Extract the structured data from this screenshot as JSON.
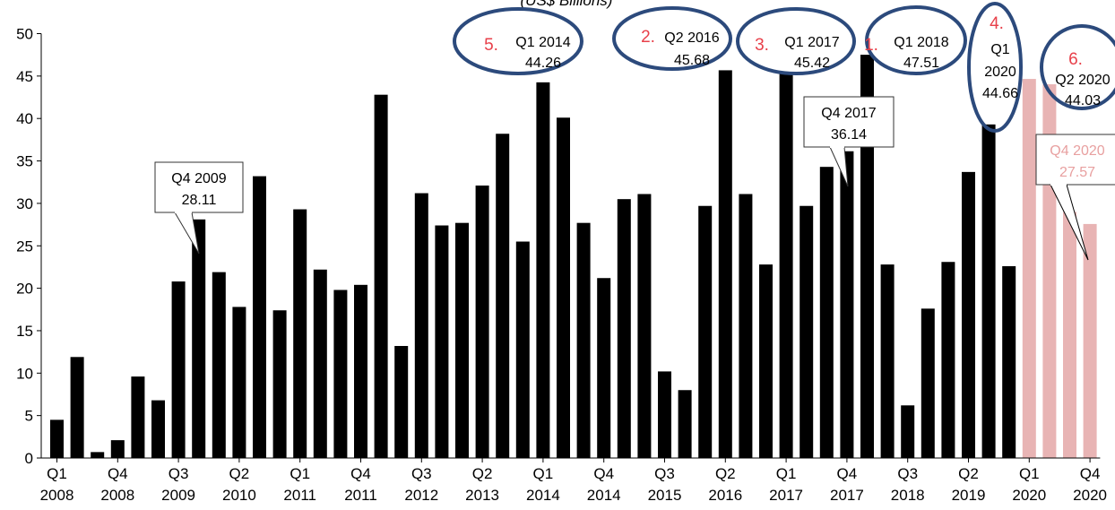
{
  "chart_data": {
    "type": "bar",
    "subtitle": "(US$ Billions)",
    "ylim": [
      0,
      50
    ],
    "yticks": [
      0,
      5,
      10,
      15,
      20,
      25,
      30,
      35,
      40,
      45,
      50
    ],
    "grid": false,
    "colors": {
      "actual": "#000000",
      "projected": "#e8b4b4",
      "callout_red": "#e8404a",
      "ellipse": "#2c4a7c",
      "label_pink": "#e8a0a0"
    },
    "categories": [
      "Q1 2008",
      "Q2 2008",
      "Q3 2008",
      "Q4 2008",
      "Q1 2009",
      "Q2 2009",
      "Q3 2009",
      "Q4 2009",
      "Q1 2010",
      "Q2 2010",
      "Q3 2010",
      "Q4 2010",
      "Q1 2011",
      "Q2 2011",
      "Q3 2011",
      "Q4 2011",
      "Q1 2012",
      "Q2 2012",
      "Q3 2012",
      "Q4 2012",
      "Q1 2013",
      "Q2 2013",
      "Q3 2013",
      "Q4 2013",
      "Q1 2014",
      "Q2 2014",
      "Q3 2014",
      "Q4 2014",
      "Q1 2015",
      "Q2 2015",
      "Q3 2015",
      "Q4 2015",
      "Q1 2016",
      "Q2 2016",
      "Q3 2016",
      "Q4 2016",
      "Q1 2017",
      "Q2 2017",
      "Q3 2017",
      "Q4 2017",
      "Q1 2018",
      "Q2 2018",
      "Q3 2018",
      "Q4 2018",
      "Q1 2019",
      "Q2 2019",
      "Q3 2019",
      "Q4 2019",
      "Q1 2020",
      "Q2 2020",
      "Q3 2020",
      "Q4 2020"
    ],
    "values": [
      4.5,
      11.9,
      0.7,
      2.1,
      9.6,
      6.8,
      20.8,
      28.11,
      21.9,
      17.8,
      33.2,
      17.4,
      29.3,
      22.2,
      19.8,
      20.4,
      42.8,
      13.2,
      31.2,
      27.4,
      27.7,
      32.1,
      38.2,
      25.5,
      44.26,
      40.1,
      27.7,
      21.2,
      30.5,
      31.1,
      10.2,
      8.0,
      29.7,
      45.68,
      31.1,
      22.8,
      45.42,
      29.7,
      34.3,
      36.14,
      47.51,
      22.8,
      6.2,
      17.6,
      23.1,
      33.7,
      39.3,
      22.6,
      44.66,
      44.03,
      29.0,
      27.57
    ],
    "projected_from_index": 48,
    "x_axis_labels": [
      {
        "index": 0,
        "q": "Q1",
        "y": "2008"
      },
      {
        "index": 3,
        "q": "Q4",
        "y": "2008"
      },
      {
        "index": 6,
        "q": "Q3",
        "y": "2009"
      },
      {
        "index": 9,
        "q": "Q2",
        "y": "2010"
      },
      {
        "index": 12,
        "q": "Q1",
        "y": "2011"
      },
      {
        "index": 15,
        "q": "Q4",
        "y": "2011"
      },
      {
        "index": 18,
        "q": "Q3",
        "y": "2012"
      },
      {
        "index": 21,
        "q": "Q2",
        "y": "2013"
      },
      {
        "index": 24,
        "q": "Q1",
        "y": "2014"
      },
      {
        "index": 27,
        "q": "Q4",
        "y": "2014"
      },
      {
        "index": 30,
        "q": "Q3",
        "y": "2015"
      },
      {
        "index": 33,
        "q": "Q2",
        "y": "2016"
      },
      {
        "index": 36,
        "q": "Q1",
        "y": "2017"
      },
      {
        "index": 39,
        "q": "Q4",
        "y": "2017"
      },
      {
        "index": 42,
        "q": "Q3",
        "y": "2018"
      },
      {
        "index": 45,
        "q": "Q2",
        "y": "2019"
      },
      {
        "index": 48,
        "q": "Q1",
        "y": "2020"
      },
      {
        "index": 51,
        "q": "Q4",
        "y": "2020"
      }
    ],
    "ranked_annotations": [
      {
        "rank": "5.",
        "lines": [
          "Q1 2014",
          "44.26"
        ]
      },
      {
        "rank": "2.",
        "lines": [
          "Q2 2016",
          "45.68"
        ]
      },
      {
        "rank": "3.",
        "lines": [
          "Q1 2017",
          "45.42"
        ]
      },
      {
        "rank": "1.",
        "lines": [
          "Q1 2018",
          "47.51"
        ]
      },
      {
        "rank": "4.",
        "lines": [
          "Q1",
          "2020",
          "44.66"
        ]
      },
      {
        "rank": "6.",
        "lines": [
          "Q2 2020",
          "44.03"
        ]
      }
    ],
    "callouts": [
      {
        "lines": [
          "Q4 2009",
          "28.11"
        ]
      },
      {
        "lines": [
          "Q4 2017",
          "36.14"
        ]
      },
      {
        "lines": [
          "Q4 2020",
          "27.57"
        ]
      }
    ]
  }
}
